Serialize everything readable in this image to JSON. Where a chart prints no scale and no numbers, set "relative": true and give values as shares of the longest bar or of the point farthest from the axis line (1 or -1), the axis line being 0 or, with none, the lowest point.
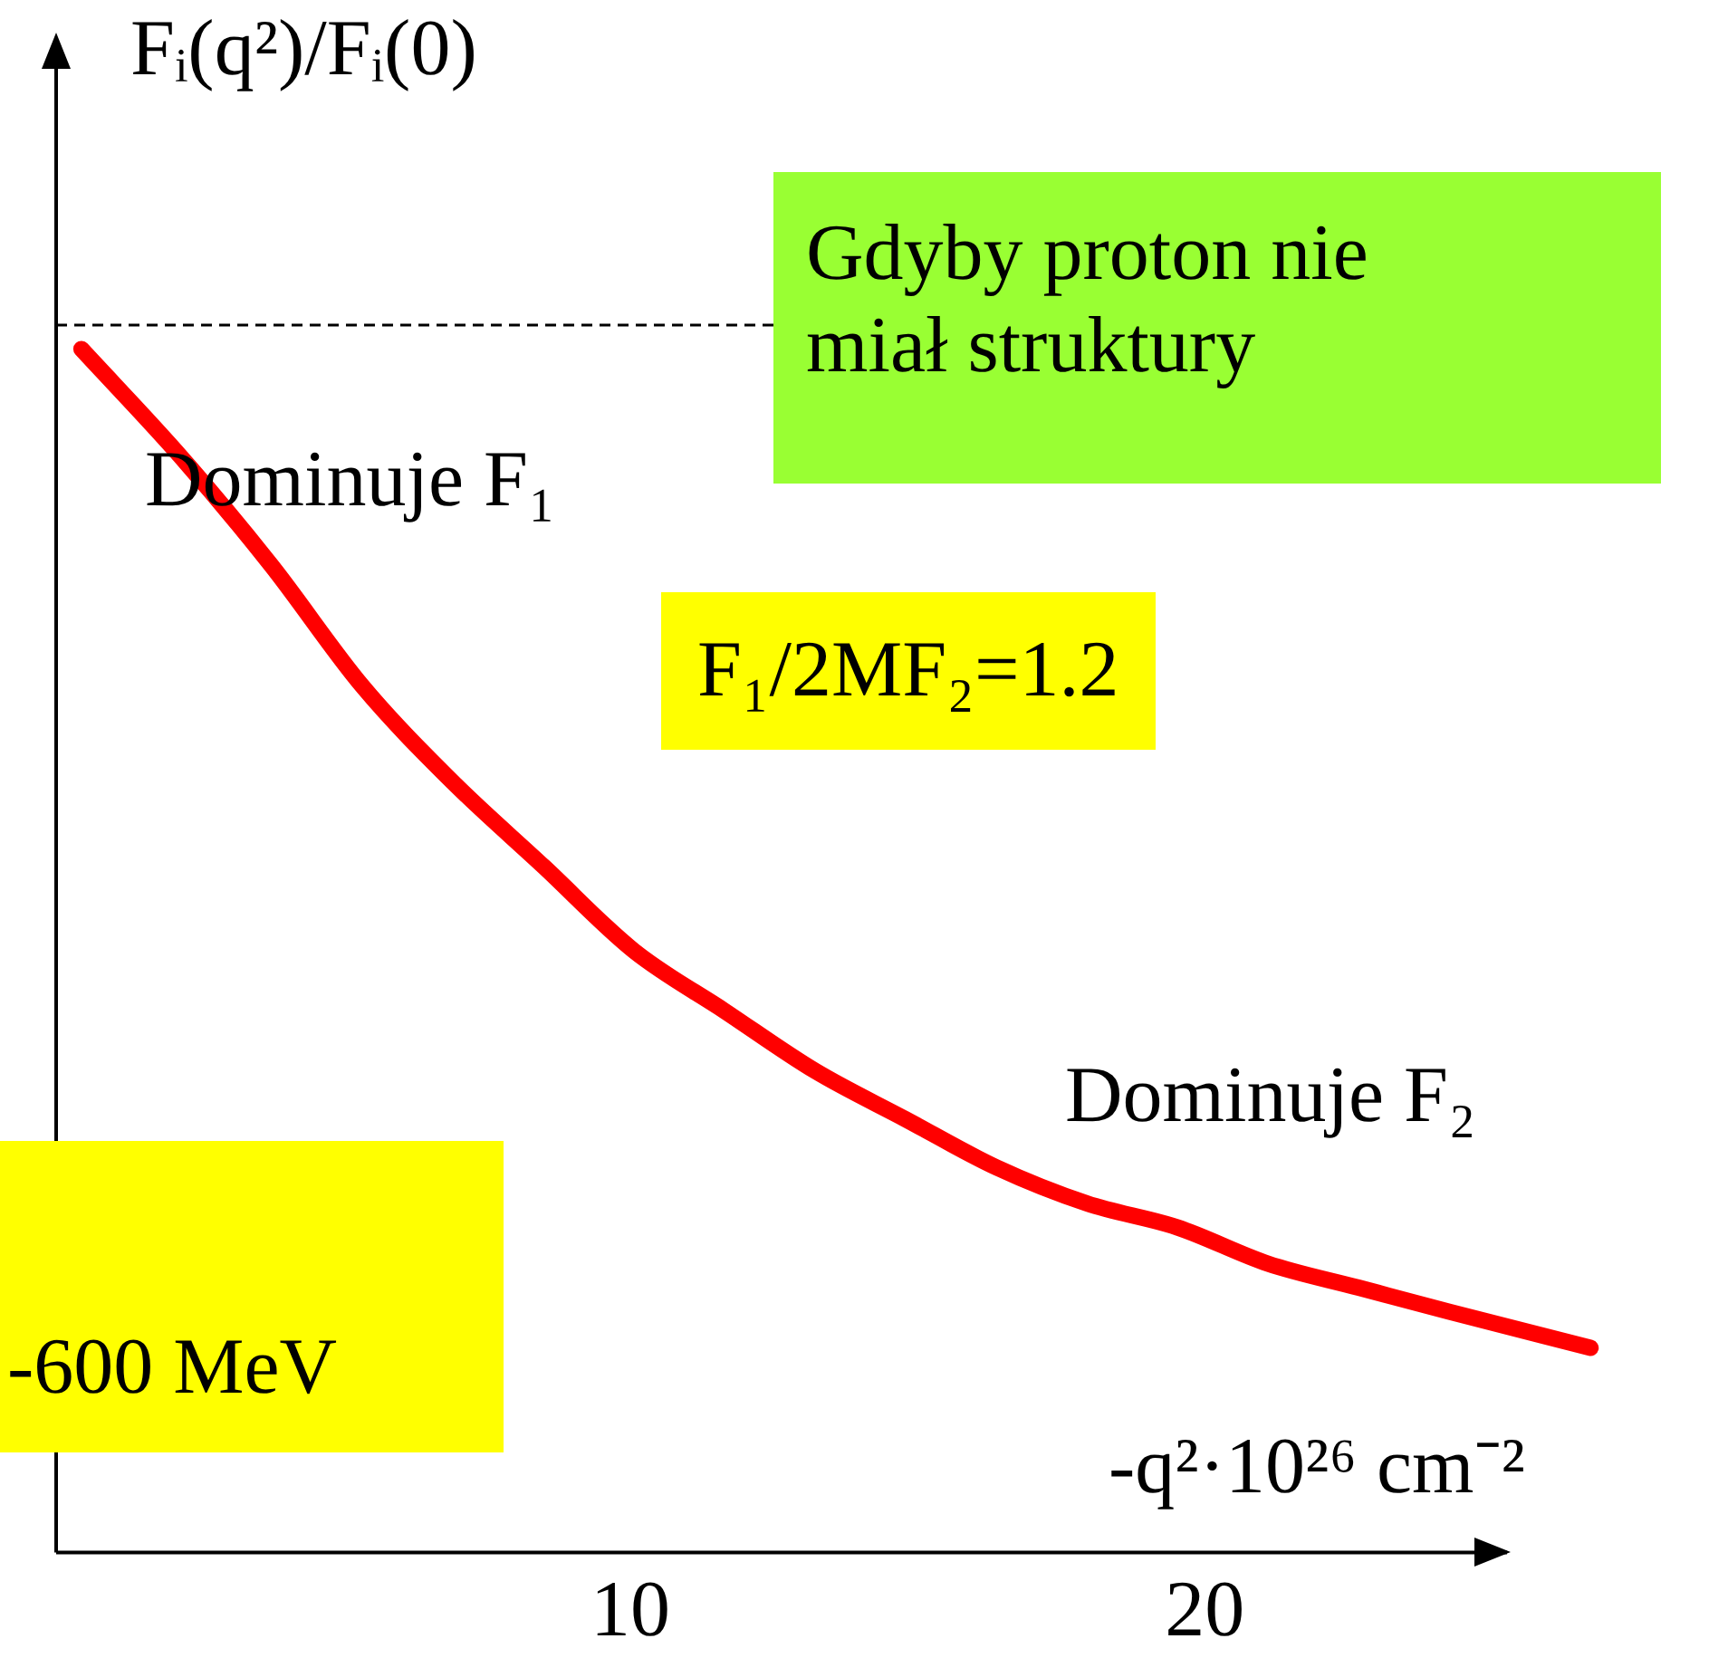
{
  "chart_data": {
    "type": "line",
    "relative": true,
    "xlabel": "-q²·10²⁶ cm⁻²",
    "ylabel": "Fᵢ(q²)/Fᵢ(0)",
    "xlim": [
      0,
      27
    ],
    "xticks": [
      10,
      20
    ],
    "series": [
      {
        "color": "#ff0000",
        "x": [
          0.44,
          2.18,
          3.75,
          5.33,
          6.91,
          8.49,
          10.06,
          11.64,
          13.22,
          14.79,
          16.37,
          17.95,
          19.53,
          21.1,
          22.68,
          24.26,
          26.72
        ],
        "values": [
          1,
          0.91,
          0.82,
          0.72,
          0.64,
          0.57,
          0.5,
          0.45,
          0.4,
          0.36,
          0.32,
          0.29,
          0.27,
          0.24,
          0.22,
          0.2,
          0.17
        ]
      }
    ],
    "ref_lines": [
      {
        "axis": "y",
        "value": 1.02,
        "label": "Gdyby proton nie miał struktury",
        "color": "#000000",
        "line_style": "dashed"
      }
    ],
    "annotations": [
      "Dominuje F₁",
      "F₁/2MF₂=1.2",
      "Dominuje F₂",
      "-600 MeV"
    ],
    "grid": false,
    "legend": false,
    "marker": "none",
    "line_style": "solid"
  }
}
